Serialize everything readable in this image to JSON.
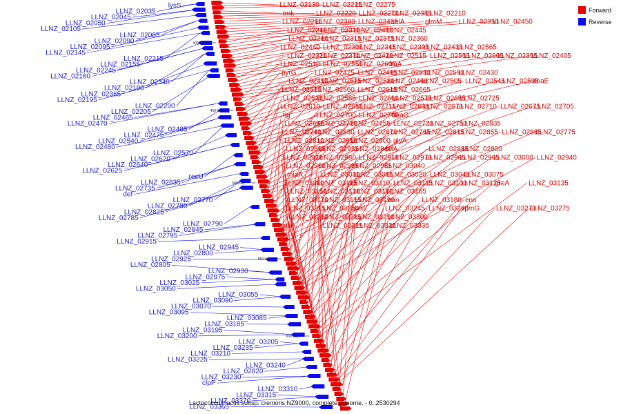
{
  "caption": "Lactococcus lactis subsp. cremoris NZ9000, complete genome. - 0..2530294",
  "legend": [
    {
      "label": "Forward",
      "color": "#e60000"
    },
    {
      "label": "Reverse",
      "color": "#0a0aee"
    }
  ],
  "colors": {
    "forward": "#e60000",
    "reverse": "#0a0aee",
    "backbone": "#808080"
  },
  "ticks": [
    "400 kbp",
    "450 kbp",
    "500 kbp",
    "550 kbp",
    "600 kbp"
  ],
  "forward_labels": [
    "LLNZ_02130",
    "LLNZ_02225",
    "LLNZ_02275",
    "tmk",
    "LLNZ_02220",
    "LLNZ_02270",
    "LLNZ_02385",
    "LLNZ_02210",
    "LLNZ_02260",
    "LLNZ_02380",
    "LLNZ_02455",
    "celA",
    "glmM",
    "LLNZ_02350",
    "LLNZ_02450",
    "LLNZ_02240",
    "LLNZ_02310",
    "LLNZ_02400",
    "LLNZ_02445",
    "LLNZ_02280",
    "LLNZ_02315",
    "LLNZ_02375",
    "LLNZ_02360",
    "LLNZ_02440",
    "LLNZ_02305",
    "LLNZ_02345",
    "LLNZ_02395",
    "LLNZ_02435",
    "LLNZ_02565",
    "LLNZ_02320",
    "LLNZ_02370",
    "LLNZ_02420",
    "LLNZ_02515",
    "LLNZ_02555",
    "LLNZ_02605",
    "LLNZ_02355",
    "LLNZ_02405",
    "LLNZ_02510",
    "LLNZ_02550",
    "LLNZ_02600",
    "truA",
    "pyrG",
    "LLNZ_02425",
    "LLNZ_02495",
    "LLNZ_02530",
    "LLNZ_02590",
    "LLNZ_02430",
    "LLNZ_02490",
    "LLNZ_02525",
    "LLNZ_02580",
    "LLNZ_02460",
    "LLNZ_02505",
    "LLNZ_02545",
    "LLNZ_02595",
    "dnaE",
    "LLNZ_02520",
    "LLNZ_02560",
    "LLNZ_02615",
    "LLNZ_02665",
    "LLNZ_02535",
    "LLNZ_02585",
    "LLNZ_02660",
    "LLNZ_02575",
    "LLNZ_02655",
    "LLNZ_02725",
    "LLNZ_02610",
    "LLNZ_02650",
    "LLNZ_02715",
    "LLNZ_02630",
    "LLNZ_02670",
    "LLNZ_02710",
    "LLNZ_02675",
    "LLNZ_02705",
    "tig",
    "LLNZ_02700",
    "LLNZ_02760",
    "dnaG",
    "LLNZ_02695",
    "LLNZ_02730",
    "LLNZ_02755",
    "LLNZ_02720",
    "LLNZ_02750",
    "LLNZ_02835",
    "LLNZ_02740",
    "LLNZ_02830",
    "LLNZ_02870",
    "LLNZ_02765",
    "LLNZ_02815",
    "LLNZ_02855",
    "LLNZ_02865",
    "LLNZ_02775",
    "LLNZ_02810",
    "LLNZ_02850",
    "LLNZ_02900",
    "glyA",
    "LLNZ_02895",
    "LLNZ_02935",
    "LLNZ_02840",
    "prfA",
    "LLNZ_02885",
    "LLNZ_02880",
    "LLNZ_02920",
    "LLNZ_02980",
    "LLNZ_02910",
    "LLNZ_02970",
    "LLNZ_02905",
    "LLNZ_02965",
    "LLNZ_03000",
    "LLNZ_02940",
    "LLNZ_02960",
    "LLNZ_02995",
    "LLNZ_02985",
    "LLNZ_03040",
    "miaA",
    "LLNZ_03030",
    "LLNZ_03005",
    "LLNZ_03020",
    "LLNZ_03045",
    "LLNZ_03075",
    "LLNZ_03080",
    "LLNZ_03105",
    "LLNZ_03110",
    "LLNZ_03115",
    "LLNZ_03100",
    "LLNZ_03125",
    "greA",
    "LLNZ_03135",
    "LLNZ_03150",
    "LLNZ_03120",
    "LLNZ_03160",
    "LLNZ_03165",
    "LLNZ_03170",
    "LLNZ_03155",
    "LLNZ_03190",
    "eno",
    "LLNZ_03180",
    "eno",
    "LLNZ_03215",
    "LLNZ_03250",
    "coaE",
    "LLNZ_03245",
    "LLNZ_03260",
    "rpmG",
    "LLNZ_03270",
    "LLNZ_03275",
    "LLNZ_03280",
    "LLNZ_03285",
    "LLNZ_03290",
    "LLNZ_03300",
    "spxA",
    "LLNZ_03325",
    "LLNZ_03330",
    "LLNZ_03335"
  ],
  "reverse_labels": [
    "lysS",
    "LLNZ_02035",
    "LLNZ_02045",
    "LLNZ_02050",
    "LLNZ_02105",
    "LLNZ_02085",
    "LLNZ_02090",
    "LLNZ_02095",
    "LLNZ_02145",
    "LLNZ_02215",
    "LLNZ_02155",
    "LLNZ_02245",
    "LLNZ_02160",
    "LLNZ_02340",
    "LLNZ_02190",
    "LLNZ_02365",
    "LLNZ_02195",
    "LLNZ_02200",
    "LLNZ_02205",
    "LLNZ_02465",
    "LLNZ_02470",
    "LLNZ_02485",
    "LLNZ_02475",
    "LLNZ_02540",
    "LLNZ_02480",
    "LLNZ_02570",
    "LLNZ_02620",
    "LLNZ_02640",
    "LLNZ_02625",
    "recU",
    "LLNZ_02635",
    "LLNZ_02735",
    "def",
    "LLNZ_02770",
    "LLNZ_02780",
    "LLNZ_02825",
    "LLNZ_02785",
    "LLNZ_02790",
    "LLNZ_02845",
    "LLNZ_02795",
    "LLNZ_02915",
    "LLNZ_02945",
    "LLNZ_02800",
    "LLNZ_02925",
    "LLNZ_02805",
    "LLNZ_02930",
    "LLNZ_02975",
    "LLNZ_03025",
    "LLNZ_03050",
    "LLNZ_03055",
    "LLNZ_03090",
    "LLNZ_03070",
    "LLNZ_03095",
    "LLNZ_03085",
    "LLNZ_03185",
    "LLNZ_03195",
    "LLNZ_03200",
    "LLNZ_03205",
    "LLNZ_03235",
    "LLNZ_03210",
    "LLNZ_03225",
    "LLNZ_03240",
    "LLNZ_02820",
    "LLNZ_03230",
    "clpP",
    "LLNZ_03310",
    "LLNZ_03315",
    "LLNZ_03370",
    "LLNZ_03365"
  ]
}
